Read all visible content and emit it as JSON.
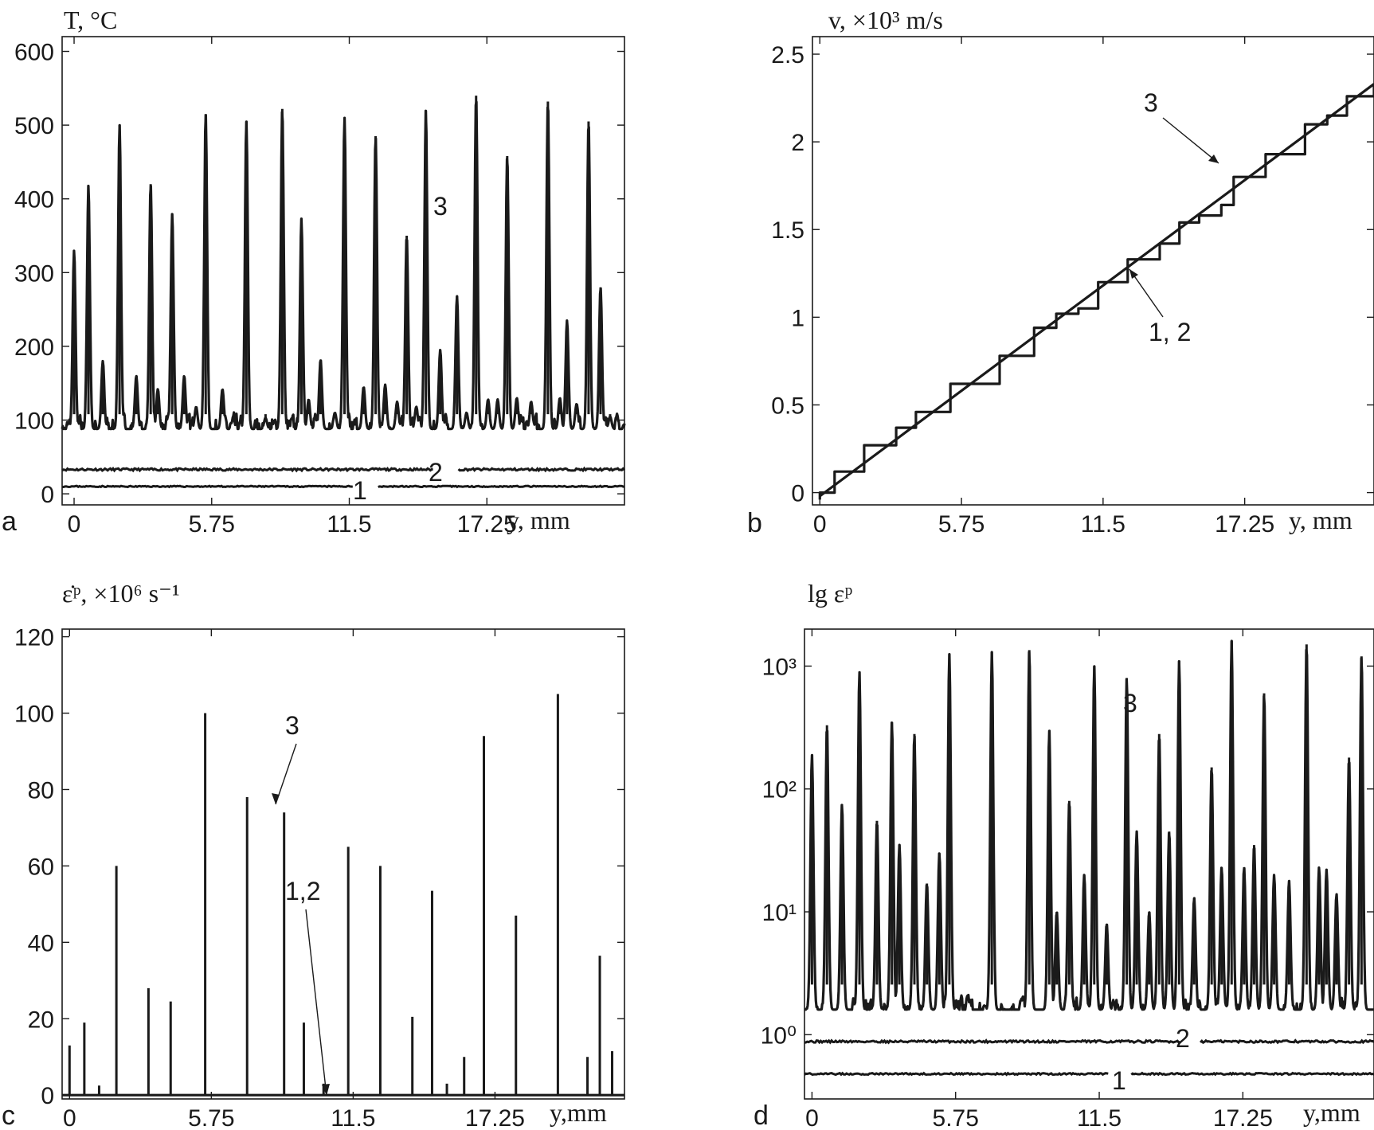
{
  "chart_data": [
    {
      "id": "a",
      "type": "line",
      "panel_letter": "a",
      "ylabel": "T, °C",
      "xlabel": "y, mm",
      "xlim": [
        -0.5,
        23
      ],
      "ylim": [
        -15,
        620
      ],
      "x_ticks": [
        0,
        5.75,
        11.5,
        17.25
      ],
      "x_tick_labels": [
        "0",
        "5.75",
        "11.5",
        "17.25"
      ],
      "y_ticks": [
        0,
        100,
        200,
        300,
        400,
        500,
        600
      ],
      "y_tick_labels": [
        "0",
        "100",
        "200",
        "300",
        "400",
        "500",
        "600"
      ],
      "baseline": 88,
      "peaks": [
        {
          "x": 0.0,
          "y": 330
        },
        {
          "x": 0.6,
          "y": 418
        },
        {
          "x": 1.2,
          "y": 180
        },
        {
          "x": 1.9,
          "y": 500
        },
        {
          "x": 2.6,
          "y": 160
        },
        {
          "x": 3.2,
          "y": 420
        },
        {
          "x": 3.5,
          "y": 142
        },
        {
          "x": 4.1,
          "y": 380
        },
        {
          "x": 4.6,
          "y": 160
        },
        {
          "x": 5.1,
          "y": 118
        },
        {
          "x": 5.5,
          "y": 515
        },
        {
          "x": 6.2,
          "y": 142
        },
        {
          "x": 7.2,
          "y": 505
        },
        {
          "x": 8.0,
          "y": 103
        },
        {
          "x": 8.7,
          "y": 522
        },
        {
          "x": 9.5,
          "y": 373
        },
        {
          "x": 9.8,
          "y": 128
        },
        {
          "x": 10.3,
          "y": 182
        },
        {
          "x": 10.9,
          "y": 110
        },
        {
          "x": 11.3,
          "y": 510
        },
        {
          "x": 12.1,
          "y": 145
        },
        {
          "x": 12.6,
          "y": 485
        },
        {
          "x": 13.0,
          "y": 148
        },
        {
          "x": 13.5,
          "y": 125
        },
        {
          "x": 13.9,
          "y": 350
        },
        {
          "x": 14.3,
          "y": 118
        },
        {
          "x": 14.7,
          "y": 520
        },
        {
          "x": 15.3,
          "y": 195
        },
        {
          "x": 16.0,
          "y": 268
        },
        {
          "x": 16.4,
          "y": 110
        },
        {
          "x": 16.8,
          "y": 540
        },
        {
          "x": 17.3,
          "y": 128
        },
        {
          "x": 17.7,
          "y": 128
        },
        {
          "x": 18.1,
          "y": 458
        },
        {
          "x": 18.5,
          "y": 130
        },
        {
          "x": 19.1,
          "y": 125
        },
        {
          "x": 19.8,
          "y": 532
        },
        {
          "x": 20.3,
          "y": 130
        },
        {
          "x": 20.6,
          "y": 235
        },
        {
          "x": 21.0,
          "y": 122
        },
        {
          "x": 21.5,
          "y": 505
        },
        {
          "x": 22.0,
          "y": 280
        },
        {
          "x": 22.4,
          "y": 105
        }
      ],
      "series": [
        {
          "name": "1",
          "constant": 10
        },
        {
          "name": "2",
          "constant": 33
        },
        {
          "name": "3"
        }
      ],
      "labels": {
        "curve1": "1",
        "curve2": "2",
        "curve3": "3"
      }
    },
    {
      "id": "b",
      "type": "line",
      "panel_letter": "b",
      "ylabel": "v, ×10³ m/s",
      "xlabel": "y, mm",
      "xlim": [
        -0.3,
        22.5
      ],
      "ylim": [
        -0.07,
        2.6
      ],
      "x_ticks": [
        0,
        5.75,
        11.5,
        17.25
      ],
      "x_tick_labels": [
        "0",
        "5.75",
        "11.5",
        "17.25"
      ],
      "y_ticks": [
        0,
        0.5,
        1,
        1.5,
        2,
        2.5
      ],
      "y_tick_labels": [
        "0",
        "0.5",
        "1",
        "1.5",
        "2",
        "2.5"
      ],
      "linear": {
        "x": [
          0,
          22.5
        ],
        "y": [
          -0.02,
          2.33
        ]
      },
      "steps": [
        {
          "x": 0.0,
          "y": 0.0
        },
        {
          "x": 0.6,
          "y": 0.12
        },
        {
          "x": 1.8,
          "y": 0.27
        },
        {
          "x": 3.1,
          "y": 0.37
        },
        {
          "x": 3.9,
          "y": 0.46
        },
        {
          "x": 5.3,
          "y": 0.62
        },
        {
          "x": 7.3,
          "y": 0.78
        },
        {
          "x": 8.7,
          "y": 0.94
        },
        {
          "x": 9.6,
          "y": 1.02
        },
        {
          "x": 10.5,
          "y": 1.05
        },
        {
          "x": 11.3,
          "y": 1.2
        },
        {
          "x": 12.5,
          "y": 1.33
        },
        {
          "x": 13.8,
          "y": 1.42
        },
        {
          "x": 14.6,
          "y": 1.54
        },
        {
          "x": 15.4,
          "y": 1.58
        },
        {
          "x": 16.3,
          "y": 1.64
        },
        {
          "x": 16.8,
          "y": 1.8
        },
        {
          "x": 18.1,
          "y": 1.93
        },
        {
          "x": 19.7,
          "y": 2.1
        },
        {
          "x": 20.6,
          "y": 2.15
        },
        {
          "x": 21.4,
          "y": 2.26
        },
        {
          "x": 22.5,
          "y": 2.33
        }
      ],
      "series": [
        {
          "name": "1, 2"
        },
        {
          "name": "3"
        }
      ],
      "labels": {
        "curve3": "3",
        "curve12": "1, 2"
      }
    },
    {
      "id": "c",
      "type": "line",
      "panel_letter": "c",
      "ylabel": "ε̇ᵖ, ×10⁶ s⁻¹",
      "xlabel": "y,mm",
      "xlim": [
        -0.3,
        22.5
      ],
      "ylim": [
        -1,
        122
      ],
      "x_ticks": [
        0,
        5.75,
        11.5,
        17.25
      ],
      "x_tick_labels": [
        "0",
        "5.75",
        "11.5",
        "17.25"
      ],
      "y_ticks": [
        0,
        20,
        40,
        60,
        80,
        100,
        120
      ],
      "y_tick_labels": [
        "0",
        "20",
        "40",
        "60",
        "80",
        "100",
        "120"
      ],
      "peaks": [
        {
          "x": 0.0,
          "y": 13
        },
        {
          "x": 0.6,
          "y": 19
        },
        {
          "x": 1.2,
          "y": 2.5
        },
        {
          "x": 1.9,
          "y": 60
        },
        {
          "x": 3.2,
          "y": 28
        },
        {
          "x": 4.1,
          "y": 24.5
        },
        {
          "x": 5.5,
          "y": 100
        },
        {
          "x": 7.2,
          "y": 78
        },
        {
          "x": 8.7,
          "y": 74
        },
        {
          "x": 9.5,
          "y": 19
        },
        {
          "x": 10.3,
          "y": 3
        },
        {
          "x": 11.3,
          "y": 65
        },
        {
          "x": 12.6,
          "y": 60
        },
        {
          "x": 13.9,
          "y": 20.5
        },
        {
          "x": 14.7,
          "y": 53.5
        },
        {
          "x": 15.3,
          "y": 3
        },
        {
          "x": 16.0,
          "y": 10
        },
        {
          "x": 16.8,
          "y": 94
        },
        {
          "x": 18.1,
          "y": 47
        },
        {
          "x": 19.8,
          "y": 105
        },
        {
          "x": 21.0,
          "y": 10
        },
        {
          "x": 21.5,
          "y": 36.5
        },
        {
          "x": 22.0,
          "y": 11.5
        }
      ],
      "series": [
        {
          "name": "1,2",
          "constant": 0
        },
        {
          "name": "3"
        }
      ],
      "labels": {
        "curve3": "3",
        "curve12": "1,2"
      }
    },
    {
      "id": "d",
      "type": "line",
      "panel_letter": "d",
      "ylabel": "lg εᵖ",
      "xlabel": "y,mm",
      "yscale": "log",
      "xlim": [
        -0.3,
        22.5
      ],
      "ylim": [
        0.3,
        2000
      ],
      "x_ticks": [
        0,
        5.75,
        11.5,
        17.25
      ],
      "x_tick_labels": [
        "0",
        "5.75",
        "11.5",
        "17.25"
      ],
      "y_ticks": [
        1,
        10,
        100,
        1000
      ],
      "y_tick_labels": [
        "10⁰",
        "10¹",
        "10²",
        "10³"
      ],
      "baseline": 1.6,
      "peaks": [
        {
          "x": 0.0,
          "y": 190
        },
        {
          "x": 0.6,
          "y": 330
        },
        {
          "x": 1.2,
          "y": 75
        },
        {
          "x": 1.9,
          "y": 900
        },
        {
          "x": 2.6,
          "y": 55
        },
        {
          "x": 3.2,
          "y": 350
        },
        {
          "x": 3.5,
          "y": 35
        },
        {
          "x": 4.1,
          "y": 280
        },
        {
          "x": 4.6,
          "y": 17
        },
        {
          "x": 5.1,
          "y": 30
        },
        {
          "x": 5.5,
          "y": 1250
        },
        {
          "x": 7.2,
          "y": 1300
        },
        {
          "x": 8.7,
          "y": 1350
        },
        {
          "x": 9.5,
          "y": 300
        },
        {
          "x": 9.8,
          "y": 10
        },
        {
          "x": 10.3,
          "y": 80
        },
        {
          "x": 10.9,
          "y": 20
        },
        {
          "x": 11.3,
          "y": 1000
        },
        {
          "x": 11.8,
          "y": 8
        },
        {
          "x": 12.6,
          "y": 800
        },
        {
          "x": 13.0,
          "y": 45
        },
        {
          "x": 13.5,
          "y": 10
        },
        {
          "x": 13.9,
          "y": 280
        },
        {
          "x": 14.3,
          "y": 45
        },
        {
          "x": 14.7,
          "y": 1100
        },
        {
          "x": 15.3,
          "y": 13
        },
        {
          "x": 16.0,
          "y": 150
        },
        {
          "x": 16.4,
          "y": 23
        },
        {
          "x": 16.8,
          "y": 1600
        },
        {
          "x": 17.3,
          "y": 23
        },
        {
          "x": 17.7,
          "y": 35
        },
        {
          "x": 18.1,
          "y": 600
        },
        {
          "x": 18.5,
          "y": 20
        },
        {
          "x": 19.1,
          "y": 18
        },
        {
          "x": 19.8,
          "y": 1500
        },
        {
          "x": 20.3,
          "y": 23
        },
        {
          "x": 20.6,
          "y": 22
        },
        {
          "x": 21.0,
          "y": 14
        },
        {
          "x": 21.5,
          "y": 180
        },
        {
          "x": 22.0,
          "y": 1200
        }
      ],
      "series": [
        {
          "name": "1",
          "constant": 0.48
        },
        {
          "name": "2",
          "constant": 0.88
        },
        {
          "name": "3"
        }
      ],
      "labels": {
        "curve1": "1",
        "curve2": "2",
        "curve3": "3"
      }
    }
  ]
}
